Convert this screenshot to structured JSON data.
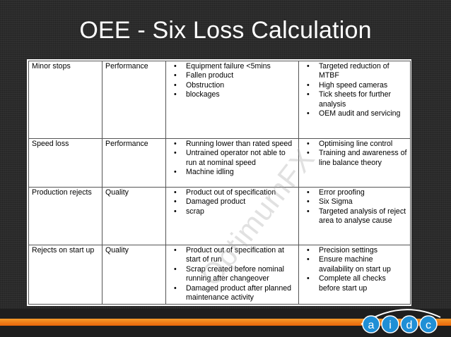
{
  "slide": {
    "title": "OEE - Six Loss Calculation",
    "watermark": "OptimumFX",
    "logo_text": "aidc"
  },
  "table": {
    "rows": [
      {
        "loss": "Minor stops",
        "category": "Performance",
        "causes": [
          "Equipment failure <5mins",
          "Fallen product",
          "Obstruction",
          "blockages"
        ],
        "actions": [
          "Targeted reduction of MTBF",
          "High speed cameras",
          "Tick sheets for further analysis",
          "OEM audit and servicing"
        ]
      },
      {
        "loss": "Speed loss",
        "category": "Performance",
        "causes": [
          "Running lower than rated speed",
          "Untrained operator not able to run at nominal speed",
          "Machine idling"
        ],
        "actions": [
          "Optimising line control",
          "Training and awareness of line balance theory"
        ]
      },
      {
        "loss": "Production rejects",
        "category": "Quality",
        "causes": [
          "Product out of specification",
          "Damaged product",
          "scrap"
        ],
        "actions": [
          "Error proofing",
          "Six Sigma",
          "Targeted analysis of reject area to analyse cause"
        ]
      },
      {
        "loss": "Rejects on start up",
        "category": "Quality",
        "causes": [
          "Product out of specification at start of run",
          "Scrap created before nominal running after changeover",
          "Damaged product after planned maintenance activity"
        ],
        "actions": [
          "Precision settings",
          "Ensure machine availability on start up",
          "Complete all checks before start up"
        ]
      }
    ]
  },
  "colors": {
    "background": "#2b2b2b",
    "accent": "#f08a1c",
    "logo_blue": "#1f8fd6"
  }
}
